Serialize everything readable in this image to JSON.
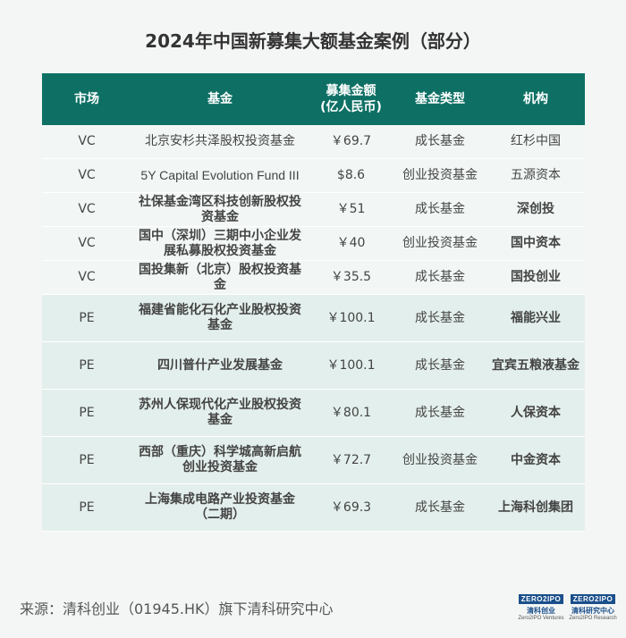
{
  "title": "2024年中国新募集大额基金案例（部分）",
  "table": {
    "headers": [
      "市场",
      "基金",
      "募集金额\n(亿人民币)",
      "基金类型",
      "机构"
    ],
    "rows": [
      {
        "market": "VC",
        "fund": "北京安杉共泽股权投资基金",
        "amount": "￥69.7",
        "type": "成长基金",
        "org": "红杉中国",
        "bold": false
      },
      {
        "market": "VC",
        "fund": "5Y Capital Evolution Fund III",
        "amount": "$8.6",
        "type": "创业投资基金",
        "org": "五源资本",
        "bold": false
      },
      {
        "market": "VC",
        "fund": "社保基金湾区科技创新股权投资基金",
        "amount": "￥51",
        "type": "成长基金",
        "org": "深创投",
        "bold": true
      },
      {
        "market": "VC",
        "fund": "国中（深圳）三期中小企业发展私募股权投资基金",
        "amount": "￥40",
        "type": "创业投资基金",
        "org": "国中资本",
        "bold": true
      },
      {
        "market": "VC",
        "fund": "国投集新（北京）股权投资基金",
        "amount": "￥35.5",
        "type": "成长基金",
        "org": "国投创业",
        "bold": true
      },
      {
        "market": "PE",
        "fund": "福建省能化石化产业股权投资基金",
        "amount": "￥100.1",
        "type": "成长基金",
        "org": "福能兴业",
        "bold": true
      },
      {
        "market": "PE",
        "fund": "四川普什产业发展基金",
        "amount": "￥100.1",
        "type": "成长基金",
        "org": "宜宾五粮液基金",
        "bold": true
      },
      {
        "market": "PE",
        "fund": "苏州人保现代化产业股权投资基金",
        "amount": "￥80.1",
        "type": "成长基金",
        "org": "人保资本",
        "bold": true
      },
      {
        "market": "PE",
        "fund": "西部（重庆）科学城高新启航创业投资基金",
        "amount": "￥72.7",
        "type": "创业投资基金",
        "org": "中金资本",
        "bold": true
      },
      {
        "market": "PE",
        "fund": "上海集成电路产业投资基金（二期）",
        "amount": "￥69.3",
        "type": "成长基金",
        "org": "上海科创集团",
        "bold": true
      }
    ]
  },
  "source": "来源：清科创业（01945.HK）旗下清科研究中心",
  "logos": [
    {
      "box": "ZERO2IPO",
      "cn": "清科创业",
      "en": "Zero2IPO Ventures"
    },
    {
      "box": "ZERO2IPO",
      "cn": "清科研究中心",
      "en": "Zero2IPO Research"
    }
  ],
  "colors": {
    "header_bg": "#0e7065",
    "vc_row": "#f2f7f6",
    "pe_row": "#e3efec",
    "logo": "#1a4f8b"
  }
}
